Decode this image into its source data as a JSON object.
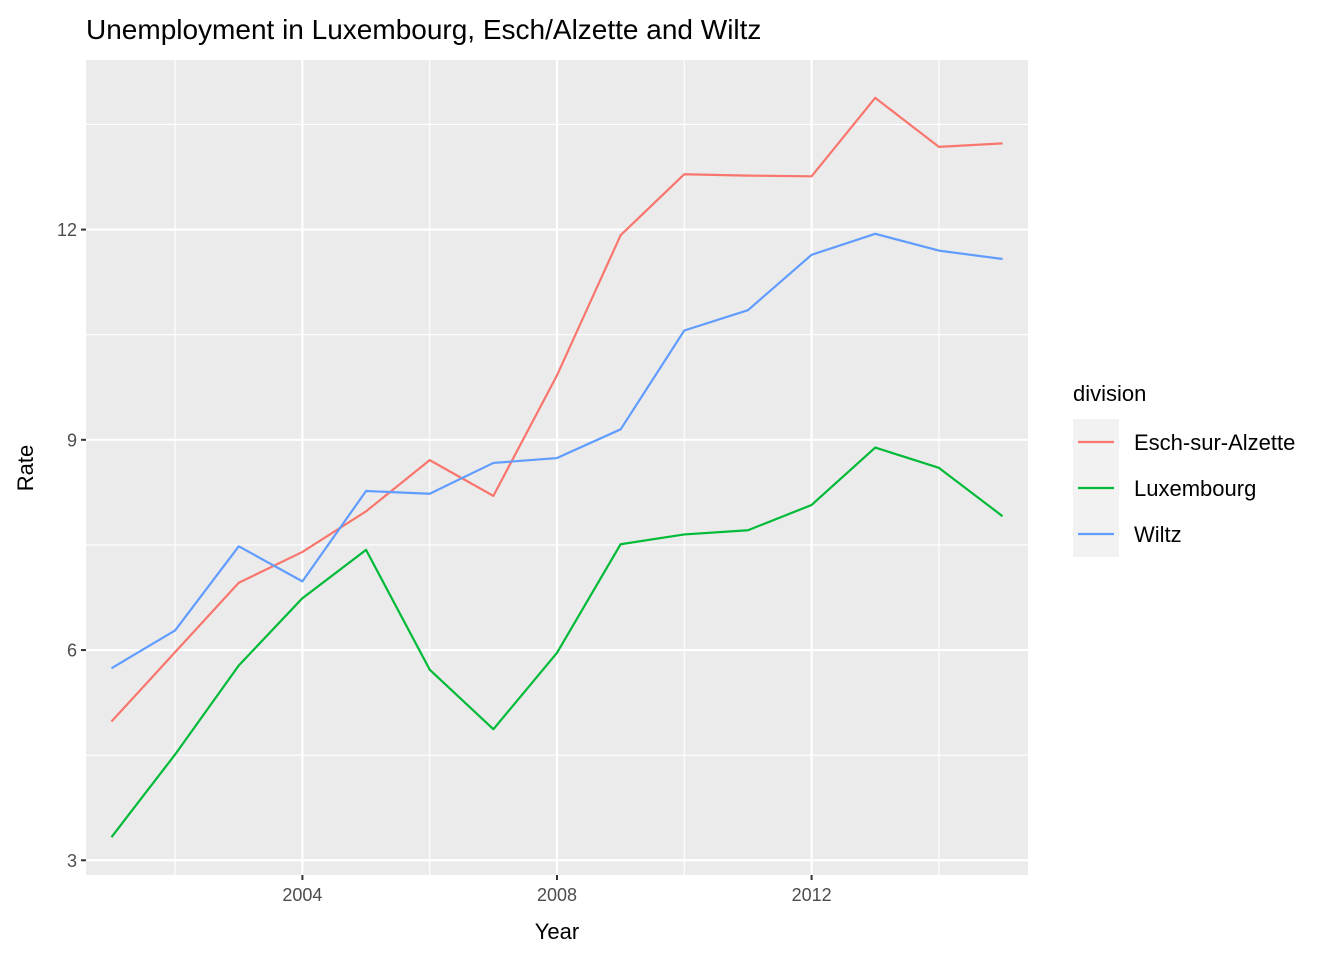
{
  "chart_data": {
    "type": "line",
    "title": "Unemployment in Luxembourg, Esch/Alzette and Wiltz",
    "xlabel": "Year",
    "ylabel": "Rate",
    "x": [
      2001,
      2002,
      2003,
      2004,
      2005,
      2006,
      2007,
      2008,
      2009,
      2010,
      2011,
      2012,
      2013,
      2014,
      2015
    ],
    "xlim": [
      2000.6,
      2015.4
    ],
    "ylim": [
      2.79,
      14.42
    ],
    "x_ticks": [
      2004,
      2008,
      2012
    ],
    "x_tick_labels": [
      "2004",
      "2008",
      "2012"
    ],
    "y_ticks": [
      3,
      6,
      9,
      12
    ],
    "y_tick_labels": [
      "3",
      "6",
      "9",
      "12"
    ],
    "grid": true,
    "legend_title": "division",
    "legend_position": "right",
    "series": [
      {
        "name": "Esch-sur-Alzette",
        "color": "#F8766D",
        "values": [
          4.98,
          5.97,
          6.96,
          7.4,
          7.98,
          8.71,
          8.2,
          9.92,
          11.92,
          12.79,
          12.77,
          12.76,
          13.88,
          13.18,
          13.23
        ]
      },
      {
        "name": "Luxembourg",
        "color": "#00BA38",
        "values": [
          3.33,
          4.51,
          5.78,
          6.74,
          7.43,
          5.72,
          4.87,
          5.96,
          7.51,
          7.65,
          7.71,
          8.07,
          8.89,
          8.6,
          7.91
        ]
      },
      {
        "name": "Wiltz",
        "color": "#619CFF",
        "values": [
          5.74,
          6.28,
          7.48,
          6.98,
          8.27,
          8.23,
          8.67,
          8.74,
          9.15,
          10.56,
          10.85,
          11.64,
          11.94,
          11.7,
          11.58
        ]
      }
    ]
  }
}
